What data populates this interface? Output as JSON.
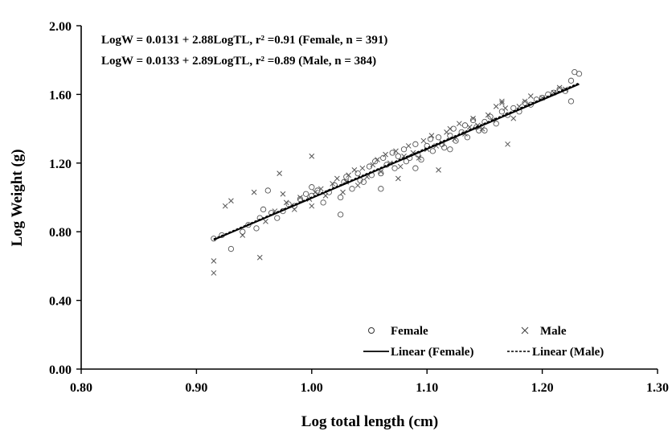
{
  "chart_data": {
    "type": "scatter",
    "title": "",
    "xlabel": "Log total length (cm)",
    "ylabel": "Log Weight (g)",
    "xlim": [
      0.8,
      1.3
    ],
    "ylim": [
      0.0,
      2.0
    ],
    "x_ticks": [
      "0.80",
      "0.90",
      "1.00",
      "1.10",
      "1.20",
      "1.30"
    ],
    "y_ticks": [
      "0.00",
      "0.40",
      "0.80",
      "1.20",
      "1.60",
      "2.00"
    ],
    "grid": false,
    "legend_position": "bottom-right",
    "annotations": [
      "LogW = 0.0131 + 2.88LogTL, r² =0.91 (Female, n = 391)",
      "LogW = 0.0133 + 2.89LogTL, r² =0.89 (Male, n = 384)"
    ],
    "legend": {
      "female": "Female",
      "male": "Male",
      "linear_female": "Linear (Female)",
      "linear_male": "Linear (Male)"
    },
    "series": [
      {
        "name": "Female",
        "marker": "circle",
        "x": [
          0.915,
          0.922,
          0.93,
          0.94,
          0.945,
          0.952,
          0.958,
          0.962,
          0.97,
          0.975,
          0.98,
          0.985,
          0.99,
          0.995,
          1.0,
          1.0,
          1.005,
          1.01,
          1.015,
          1.02,
          1.025,
          1.028,
          1.03,
          1.035,
          1.04,
          1.042,
          1.045,
          1.05,
          1.052,
          1.055,
          1.06,
          1.062,
          1.065,
          1.07,
          1.072,
          1.075,
          1.08,
          1.082,
          1.085,
          1.09,
          1.092,
          1.095,
          1.1,
          1.103,
          1.105,
          1.11,
          1.113,
          1.115,
          1.12,
          1.123,
          1.125,
          1.13,
          1.133,
          1.135,
          1.14,
          1.143,
          1.145,
          1.15,
          1.155,
          1.16,
          1.165,
          1.17,
          1.175,
          1.18,
          1.185,
          1.19,
          1.195,
          1.2,
          1.205,
          1.21,
          1.215,
          1.22,
          1.225,
          1.228,
          1.232,
          0.955,
          0.965,
          1.025,
          1.06,
          1.09,
          1.12,
          1.15,
          1.225
        ],
        "y": [
          0.76,
          0.78,
          0.7,
          0.8,
          0.84,
          0.82,
          0.93,
          1.04,
          0.88,
          0.92,
          0.96,
          0.95,
          0.99,
          1.02,
          1.01,
          1.06,
          1.04,
          0.97,
          1.03,
          1.07,
          1.0,
          1.09,
          1.12,
          1.05,
          1.14,
          1.1,
          1.09,
          1.18,
          1.13,
          1.21,
          1.14,
          1.23,
          1.19,
          1.26,
          1.17,
          1.24,
          1.28,
          1.21,
          1.23,
          1.31,
          1.25,
          1.22,
          1.3,
          1.34,
          1.27,
          1.35,
          1.31,
          1.29,
          1.36,
          1.4,
          1.33,
          1.38,
          1.42,
          1.35,
          1.45,
          1.41,
          1.39,
          1.44,
          1.47,
          1.43,
          1.5,
          1.48,
          1.52,
          1.5,
          1.55,
          1.54,
          1.57,
          1.58,
          1.6,
          1.61,
          1.63,
          1.62,
          1.68,
          1.73,
          1.72,
          0.88,
          0.91,
          0.9,
          1.05,
          1.17,
          1.28,
          1.39,
          1.56
        ]
      },
      {
        "name": "Male",
        "marker": "x",
        "x": [
          0.915,
          0.915,
          0.925,
          0.93,
          0.94,
          0.95,
          0.955,
          0.96,
          0.968,
          0.972,
          0.978,
          0.985,
          0.99,
          0.998,
          1.0,
          1.003,
          1.008,
          1.012,
          1.018,
          1.022,
          1.027,
          1.032,
          1.037,
          1.04,
          1.044,
          1.048,
          1.053,
          1.057,
          1.06,
          1.064,
          1.068,
          1.073,
          1.077,
          1.08,
          1.084,
          1.088,
          1.093,
          1.097,
          1.1,
          1.104,
          1.108,
          1.113,
          1.117,
          1.12,
          1.124,
          1.128,
          1.133,
          1.137,
          1.14,
          1.144,
          1.148,
          1.153,
          1.157,
          1.16,
          1.165,
          1.168,
          1.17,
          1.175,
          1.18,
          1.185,
          1.19,
          1.2,
          1.21,
          1.215,
          1.22,
          0.975,
          1.0,
          1.03,
          1.075,
          1.11,
          1.165
        ],
        "y": [
          0.63,
          0.56,
          0.95,
          0.98,
          0.78,
          1.03,
          0.65,
          0.86,
          0.92,
          1.14,
          0.97,
          0.93,
          1.0,
          0.99,
          1.24,
          1.03,
          1.05,
          1.01,
          1.08,
          1.11,
          1.03,
          1.13,
          1.16,
          1.07,
          1.17,
          1.12,
          1.19,
          1.22,
          1.15,
          1.25,
          1.2,
          1.27,
          1.18,
          1.24,
          1.3,
          1.26,
          1.23,
          1.33,
          1.28,
          1.36,
          1.3,
          1.32,
          1.38,
          1.4,
          1.34,
          1.43,
          1.37,
          1.41,
          1.46,
          1.42,
          1.4,
          1.48,
          1.45,
          1.53,
          1.55,
          1.52,
          1.31,
          1.46,
          1.53,
          1.56,
          1.59,
          1.58,
          1.61,
          1.64,
          1.63,
          1.02,
          0.95,
          1.09,
          1.11,
          1.16,
          1.56
        ]
      }
    ],
    "fits": [
      {
        "name": "Linear (Female)",
        "style": "solid",
        "x": [
          0.915,
          1.232
        ],
        "y": [
          0.753,
          1.66
        ]
      },
      {
        "name": "Linear (Male)",
        "style": "dashed",
        "x": [
          0.915,
          1.232
        ],
        "y": [
          0.758,
          1.667
        ]
      }
    ]
  }
}
